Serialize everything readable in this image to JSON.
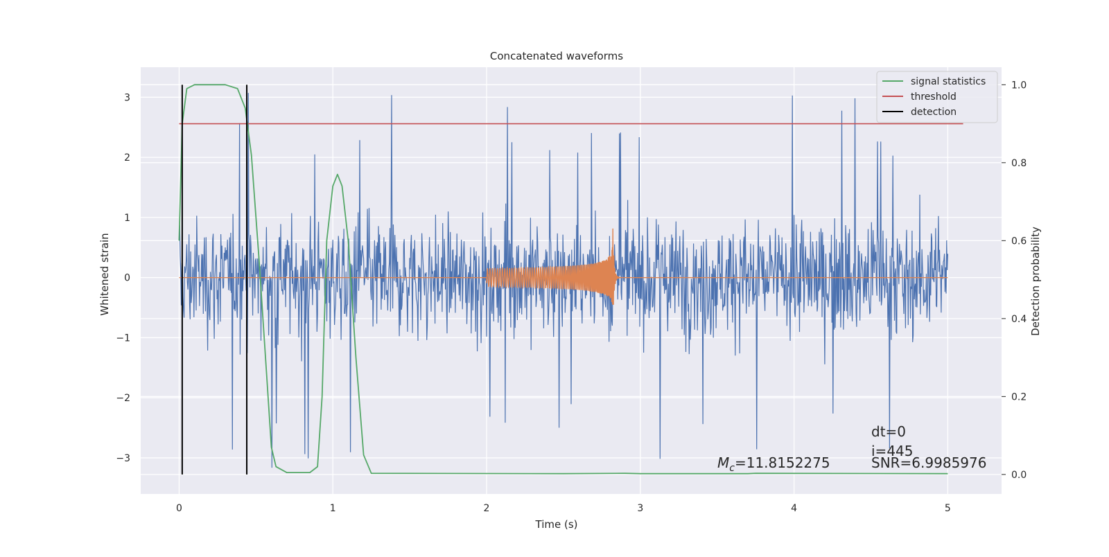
{
  "chart_data": {
    "type": "line",
    "title": "Concatenated waveforms",
    "xlabel": "Time (s)",
    "ylabel": "Whitened strain",
    "y2label": "Detection probability",
    "xlim": [
      -0.25,
      5.35
    ],
    "ylim": [
      -3.6,
      3.5
    ],
    "y2lim": [
      -0.05,
      1.045
    ],
    "xticks": [
      0,
      1,
      2,
      3,
      4,
      5
    ],
    "yticks": [
      -3,
      -2,
      -1,
      0,
      1,
      2,
      3
    ],
    "y2ticks": [
      0.0,
      0.2,
      0.4,
      0.6,
      0.8,
      1.0
    ],
    "grid": true,
    "legend_position": "top-right",
    "colors": {
      "background": "#eaeaf2",
      "grid": "#ffffff",
      "strain": "#4c72b0",
      "template": "#dd8452",
      "signal_statistics": "#55a868",
      "threshold": "#c44e52",
      "detection": "#000000"
    },
    "legend": [
      {
        "name": "signal statistics",
        "color_key": "signal_statistics"
      },
      {
        "name": "threshold",
        "color_key": "threshold"
      },
      {
        "name": "detection",
        "color_key": "detection"
      }
    ],
    "strain_noise": {
      "x_range": [
        0,
        5
      ],
      "approx_std": 0.9,
      "approx_min": -3.4,
      "approx_max": 3.2
    },
    "template_chirp": {
      "x_start": 2.0,
      "x_merger": 2.82,
      "x_end": 2.9,
      "start_amplitude": 0.15,
      "peak_amplitude": 1.0
    },
    "threshold": {
      "x": [
        0,
        5.1
      ],
      "value": 0.9
    },
    "detections": [
      0.02,
      0.44
    ],
    "signal_statistics": [
      {
        "x": 0.0,
        "y": 0.6
      },
      {
        "x": 0.02,
        "y": 0.9
      },
      {
        "x": 0.05,
        "y": 0.99
      },
      {
        "x": 0.1,
        "y": 1.0
      },
      {
        "x": 0.3,
        "y": 1.0
      },
      {
        "x": 0.38,
        "y": 0.99
      },
      {
        "x": 0.43,
        "y": 0.94
      },
      {
        "x": 0.47,
        "y": 0.82
      },
      {
        "x": 0.52,
        "y": 0.55
      },
      {
        "x": 0.57,
        "y": 0.25
      },
      {
        "x": 0.6,
        "y": 0.07
      },
      {
        "x": 0.63,
        "y": 0.02
      },
      {
        "x": 0.7,
        "y": 0.005
      },
      {
        "x": 0.85,
        "y": 0.005
      },
      {
        "x": 0.9,
        "y": 0.02
      },
      {
        "x": 0.93,
        "y": 0.2
      },
      {
        "x": 0.96,
        "y": 0.6
      },
      {
        "x": 1.0,
        "y": 0.74
      },
      {
        "x": 1.03,
        "y": 0.77
      },
      {
        "x": 1.06,
        "y": 0.74
      },
      {
        "x": 1.1,
        "y": 0.6
      },
      {
        "x": 1.15,
        "y": 0.3
      },
      {
        "x": 1.2,
        "y": 0.05
      },
      {
        "x": 1.25,
        "y": 0.003
      },
      {
        "x": 2.5,
        "y": 0.002
      },
      {
        "x": 2.9,
        "y": 0.003
      },
      {
        "x": 3.0,
        "y": 0.002
      },
      {
        "x": 3.7,
        "y": 0.002
      },
      {
        "x": 3.75,
        "y": 0.003
      },
      {
        "x": 5.0,
        "y": 0.002
      }
    ],
    "annotations": {
      "mc": "M",
      "mc_sub": "c",
      "mc_value": "=11.8152275",
      "dt": "dt=0",
      "index": "i=445",
      "snr": "SNR=6.9985976"
    }
  }
}
